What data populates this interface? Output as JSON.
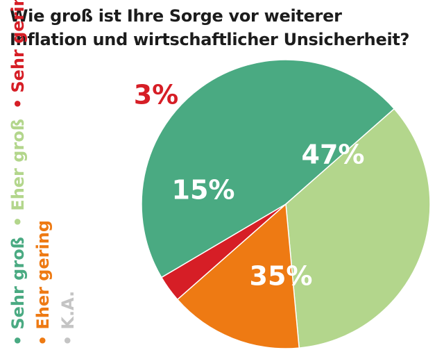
{
  "title_lines": [
    "Wie groß ist Ihre Sorge vor weiterer",
    "Inflation und wirtschaftlicher Unsicherheit?"
  ],
  "colors": {
    "title": "#1c1c1c",
    "sehr_gross": "#4aaa82",
    "eher_gross": "#b3d68c",
    "eher_gering": "#ee7a13",
    "sehr_gering": "#d61e26",
    "ka": "#c4c4c4"
  },
  "legend_rows": [
    [
      {
        "label": "Sehr groß",
        "color": "#4aaa82"
      },
      {
        "label": "Eher groß",
        "color": "#b3d68c"
      },
      {
        "label": "Sehr gering",
        "color": "#d61e26"
      }
    ],
    [
      {
        "label": "Eher gering",
        "color": "#ee7a13"
      }
    ],
    [
      {
        "label": "K.A.",
        "color": "#c4c4c4"
      }
    ]
  ],
  "chart_data": {
    "type": "pie",
    "title": "Wie groß ist Ihre Sorge vor weiterer Inflation und wirtschaftlicher Unsicherheit?",
    "slices": [
      {
        "label": "Sehr groß",
        "value": 47,
        "display": "47%",
        "color": "#4aaa82",
        "label_color": "#ffffff"
      },
      {
        "label": "Eher groß",
        "value": 35,
        "display": "35%",
        "color": "#b3d68c",
        "label_color": "#ffffff"
      },
      {
        "label": "Eher gering",
        "value": 15,
        "display": "15%",
        "color": "#ee7a13",
        "label_color": "#ffffff"
      },
      {
        "label": "Sehr gering",
        "value": 3,
        "display": "3%",
        "color": "#d61e26",
        "label_color": "#d61e26"
      },
      {
        "label": "K.A.",
        "value": 0,
        "display": "",
        "color": "#c4c4c4",
        "label_color": "#c4c4c4"
      }
    ],
    "legend_position": "left (vertical)",
    "slice_labels": "inside (outside for small slices)"
  }
}
